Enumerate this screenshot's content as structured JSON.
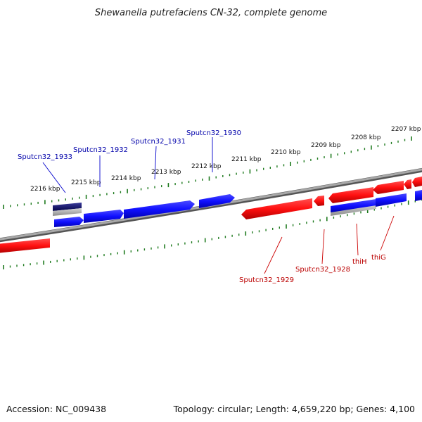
{
  "title": "Shewanella putrefaciens CN-32, complete genome",
  "footer": {
    "accession": "Accession: NC_009438",
    "summary": "Topology: circular; Length: 4,659,220 bp; Genes: 4,100"
  },
  "colors": {
    "forward_gene": "#1a1aff",
    "reverse_gene": "#ff1a1a",
    "backbone": "#8a8a8a",
    "tick": "#1e7a1e",
    "blue_label": "#0000aa",
    "red_label": "#bb0000"
  },
  "ticks": [
    "2216 kbp",
    "2215 kbp",
    "2214 kbp",
    "2213 kbp",
    "2212 kbp",
    "2211 kbp",
    "2210 kbp",
    "2209 kbp",
    "2208 kbp",
    "2207 kbp"
  ],
  "gene_labels": {
    "forward": [
      "Sputcn32_1933",
      "Sputcn32_1932",
      "Sputcn32_1931",
      "Sputcn32_1930"
    ],
    "reverse": [
      "Sputcn32_1929",
      "Sputcn32_1928",
      "thiH",
      "thiG"
    ]
  }
}
